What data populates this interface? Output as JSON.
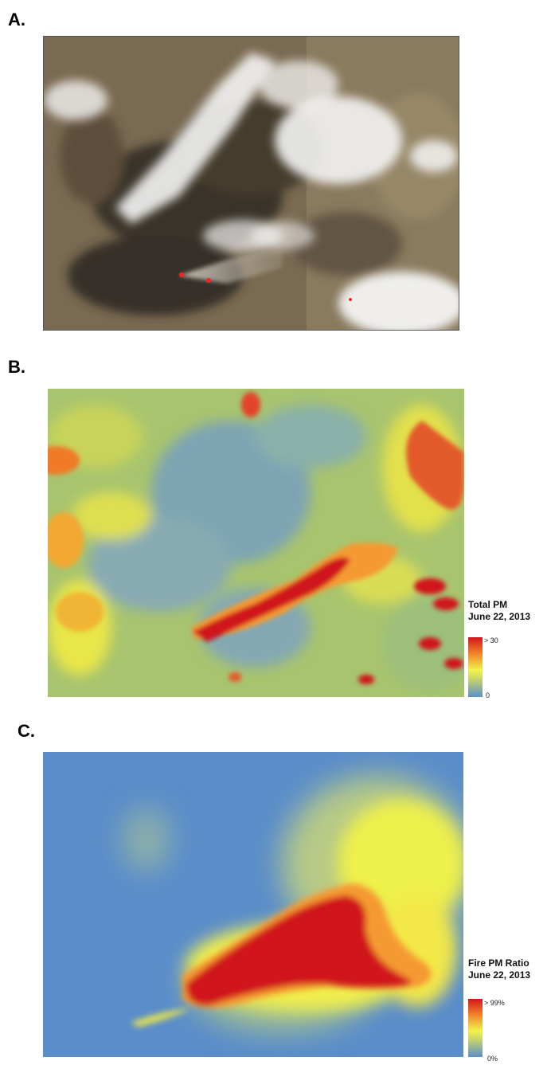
{
  "panels": {
    "a": {
      "letter": "A."
    },
    "b": {
      "letter": "B.",
      "legend_title_1": "Total PM",
      "legend_title_2": "June 22, 2013",
      "max_label": "> 30",
      "min_label": "0"
    },
    "c": {
      "letter": "C.",
      "legend_title_1": "Fire PM Ratio",
      "legend_title_2": "June 22, 2013",
      "max_label": "> 99%",
      "min_label": "0%"
    }
  },
  "colors": {
    "scale_low": "#5b8fc9",
    "scale_mid": "#f3f24a",
    "scale_high": "#d0161a",
    "fire_marker": "#ff2020"
  }
}
